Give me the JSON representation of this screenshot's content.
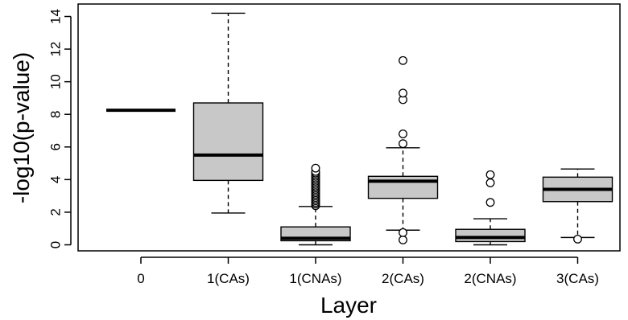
{
  "chart_data": {
    "type": "boxplot",
    "xlabel": "Layer",
    "ylabel": "-log10(p-value)",
    "ylim": [
      0,
      14.2
    ],
    "yticks": [
      0,
      2,
      4,
      6,
      8,
      10,
      12,
      14
    ],
    "grid": false,
    "legend": "none",
    "colors": {
      "box_fill": "#c8c8c8",
      "stroke": "#000000",
      "background": "#ffffff"
    },
    "categories": [
      "0",
      "1(CAs)",
      "1(CNAs)",
      "2(CAs)",
      "2(CNAs)",
      "3(CAs)"
    ],
    "boxes": [
      {
        "category": "0",
        "whisker_low": 8.25,
        "q1": 8.25,
        "median": 8.25,
        "q3": 8.25,
        "whisker_high": 8.25,
        "outliers": []
      },
      {
        "category": "1(CAs)",
        "whisker_low": 1.95,
        "q1": 3.95,
        "median": 5.5,
        "q3": 8.7,
        "whisker_high": 14.2,
        "outliers": []
      },
      {
        "category": "1(CNAs)",
        "whisker_low": 0.0,
        "q1": 0.25,
        "median": 0.4,
        "q3": 1.1,
        "whisker_high": 2.35,
        "outliers": [
          2.4,
          2.5,
          2.6,
          2.7,
          2.8,
          2.9,
          3.0,
          3.1,
          3.2,
          3.3,
          3.4,
          3.5,
          3.6,
          3.7,
          3.8,
          3.9,
          4.0,
          4.1,
          4.2,
          4.3,
          4.4,
          4.5,
          4.7
        ]
      },
      {
        "category": "2(CAs)",
        "whisker_low": 0.9,
        "q1": 2.85,
        "median": 3.9,
        "q3": 4.2,
        "whisker_high": 5.95,
        "outliers": [
          0.3,
          0.75,
          6.2,
          6.8,
          8.9,
          9.3,
          11.3
        ]
      },
      {
        "category": "2(CNAs)",
        "whisker_low": 0.0,
        "q1": 0.2,
        "median": 0.45,
        "q3": 0.95,
        "whisker_high": 1.6,
        "outliers": [
          2.6,
          3.8,
          4.3
        ]
      },
      {
        "category": "3(CAs)",
        "whisker_low": 0.45,
        "q1": 2.65,
        "median": 3.4,
        "q3": 4.15,
        "whisker_high": 4.65,
        "outliers": [
          0.35
        ]
      }
    ]
  }
}
